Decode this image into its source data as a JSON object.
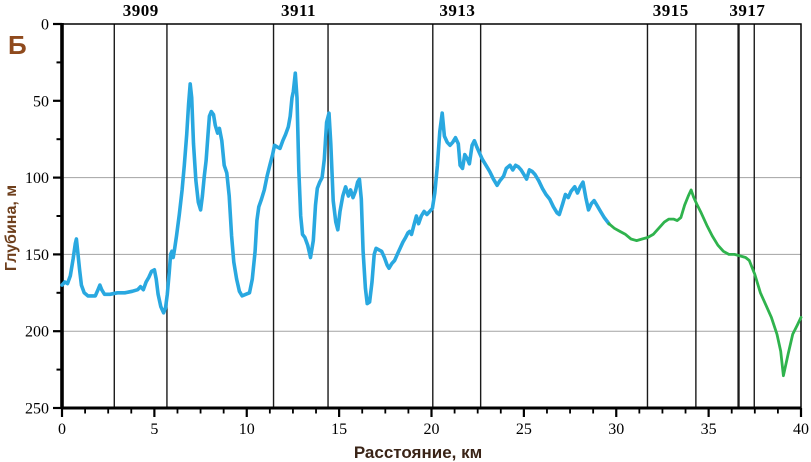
{
  "chart_data": {
    "type": "line",
    "figure_label": "Б",
    "xlabel": "Расстояние, км",
    "ylabel": "Глубина, м",
    "x_range": [
      0,
      40
    ],
    "depth_range": [
      0,
      250
    ],
    "y_axis_inverted": true,
    "x_major_ticks": [
      0,
      5,
      10,
      15,
      20,
      25,
      30,
      35,
      40
    ],
    "x_minor_step": 1.25,
    "y_major_ticks": [
      0,
      50,
      100,
      150,
      200,
      250
    ],
    "y_minor_step": 25,
    "horizontal_gridlines_m": [
      100,
      150,
      200
    ],
    "grid_on": true,
    "legend": "none",
    "station_marker_lines_km": [
      2.83,
      5.68,
      11.45,
      14.4,
      20.07,
      22.66,
      31.69,
      34.31,
      36.62,
      37.47
    ],
    "thick_marker_line_km": 36.62,
    "station_labels": [
      {
        "label": "3909",
        "km": 4.26
      },
      {
        "label": "3911",
        "km": 12.8
      },
      {
        "label": "3913",
        "km": 21.4
      },
      {
        "label": "3915",
        "km": 32.95
      },
      {
        "label": "3917",
        "km": 37.1
      }
    ],
    "series": [
      {
        "name": "depth-profile-blue-segment",
        "color": "#29a8e0",
        "points": [
          [
            0,
            170
          ],
          [
            0.15,
            168
          ],
          [
            0.3,
            169
          ],
          [
            0.45,
            164
          ],
          [
            0.6,
            153
          ],
          [
            0.72,
            143
          ],
          [
            0.78,
            140
          ],
          [
            0.85,
            148
          ],
          [
            0.95,
            160
          ],
          [
            1.05,
            170
          ],
          [
            1.2,
            175
          ],
          [
            1.4,
            177
          ],
          [
            1.6,
            177
          ],
          [
            1.8,
            177
          ],
          [
            1.95,
            173
          ],
          [
            2.05,
            170
          ],
          [
            2.15,
            173
          ],
          [
            2.3,
            176
          ],
          [
            2.6,
            176
          ],
          [
            3.0,
            175
          ],
          [
            3.4,
            175
          ],
          [
            3.8,
            174
          ],
          [
            4.1,
            173
          ],
          [
            4.25,
            171
          ],
          [
            4.4,
            173
          ],
          [
            4.55,
            168
          ],
          [
            4.7,
            165
          ],
          [
            4.85,
            161
          ],
          [
            5.0,
            160
          ],
          [
            5.1,
            166
          ],
          [
            5.2,
            176
          ],
          [
            5.35,
            184
          ],
          [
            5.5,
            188
          ],
          [
            5.6,
            185
          ],
          [
            5.7,
            176
          ],
          [
            5.8,
            162
          ],
          [
            5.88,
            150
          ],
          [
            5.95,
            148
          ],
          [
            6.02,
            152
          ],
          [
            6.1,
            146
          ],
          [
            6.2,
            138
          ],
          [
            6.35,
            124
          ],
          [
            6.5,
            108
          ],
          [
            6.62,
            92
          ],
          [
            6.75,
            72
          ],
          [
            6.85,
            52
          ],
          [
            6.94,
            39
          ],
          [
            7.02,
            48
          ],
          [
            7.12,
            78
          ],
          [
            7.25,
            102
          ],
          [
            7.38,
            116
          ],
          [
            7.5,
            121
          ],
          [
            7.6,
            112
          ],
          [
            7.7,
            99
          ],
          [
            7.8,
            89
          ],
          [
            7.9,
            72
          ],
          [
            7.98,
            60
          ],
          [
            8.08,
            57
          ],
          [
            8.2,
            59
          ],
          [
            8.3,
            66
          ],
          [
            8.42,
            71
          ],
          [
            8.52,
            68
          ],
          [
            8.65,
            76
          ],
          [
            8.78,
            92
          ],
          [
            8.92,
            97
          ],
          [
            9.05,
            112
          ],
          [
            9.18,
            138
          ],
          [
            9.3,
            155
          ],
          [
            9.45,
            166
          ],
          [
            9.6,
            174
          ],
          [
            9.75,
            177
          ],
          [
            9.95,
            176
          ],
          [
            10.15,
            175
          ],
          [
            10.3,
            166
          ],
          [
            10.45,
            148
          ],
          [
            10.55,
            128
          ],
          [
            10.65,
            119
          ],
          [
            10.8,
            114
          ],
          [
            10.95,
            108
          ],
          [
            11.1,
            99
          ],
          [
            11.25,
            92
          ],
          [
            11.4,
            85
          ],
          [
            11.5,
            79
          ],
          [
            11.65,
            80
          ],
          [
            11.8,
            81
          ],
          [
            11.95,
            76
          ],
          [
            12.1,
            72
          ],
          [
            12.25,
            67
          ],
          [
            12.35,
            60
          ],
          [
            12.45,
            48
          ],
          [
            12.52,
            44
          ],
          [
            12.63,
            32
          ],
          [
            12.72,
            48
          ],
          [
            12.82,
            95
          ],
          [
            12.92,
            125
          ],
          [
            13.02,
            137
          ],
          [
            13.15,
            139
          ],
          [
            13.3,
            144
          ],
          [
            13.45,
            152
          ],
          [
            13.6,
            141
          ],
          [
            13.72,
            118
          ],
          [
            13.82,
            107
          ],
          [
            13.95,
            103
          ],
          [
            14.08,
            100
          ],
          [
            14.2,
            88
          ],
          [
            14.32,
            64
          ],
          [
            14.45,
            58
          ],
          [
            14.55,
            78
          ],
          [
            14.68,
            115
          ],
          [
            14.82,
            129
          ],
          [
            14.93,
            134
          ],
          [
            15.05,
            122
          ],
          [
            15.2,
            112
          ],
          [
            15.35,
            106
          ],
          [
            15.5,
            112
          ],
          [
            15.62,
            108
          ],
          [
            15.75,
            113
          ],
          [
            15.88,
            109
          ],
          [
            16.0,
            103
          ],
          [
            16.1,
            101
          ],
          [
            16.2,
            114
          ],
          [
            16.3,
            148
          ],
          [
            16.42,
            172
          ],
          [
            16.52,
            182
          ],
          [
            16.65,
            181
          ],
          [
            16.78,
            168
          ],
          [
            16.9,
            150
          ],
          [
            17.0,
            146
          ],
          [
            17.15,
            147
          ],
          [
            17.3,
            148
          ],
          [
            17.45,
            152
          ],
          [
            17.6,
            157
          ],
          [
            17.7,
            159
          ],
          [
            17.85,
            156
          ],
          [
            18.0,
            154
          ],
          [
            18.15,
            150
          ],
          [
            18.3,
            146
          ],
          [
            18.45,
            142
          ],
          [
            18.6,
            139
          ],
          [
            18.72,
            136
          ],
          [
            18.82,
            135
          ],
          [
            18.92,
            137
          ],
          [
            19.05,
            131
          ],
          [
            19.18,
            125
          ],
          [
            19.3,
            130
          ],
          [
            19.45,
            125
          ],
          [
            19.6,
            122
          ],
          [
            19.75,
            124
          ],
          [
            19.9,
            122
          ],
          [
            20.05,
            120
          ],
          [
            20.18,
            110
          ],
          [
            20.32,
            92
          ],
          [
            20.45,
            70
          ],
          [
            20.58,
            58
          ],
          [
            20.7,
            73
          ],
          [
            20.85,
            77
          ],
          [
            21.0,
            79
          ],
          [
            21.15,
            77
          ],
          [
            21.3,
            74
          ],
          [
            21.45,
            78
          ],
          [
            21.55,
            92
          ],
          [
            21.68,
            94
          ],
          [
            21.8,
            85
          ],
          [
            21.95,
            88
          ],
          [
            22.05,
            91
          ],
          [
            22.2,
            79
          ],
          [
            22.32,
            76
          ],
          [
            22.45,
            80
          ],
          [
            22.6,
            84
          ],
          [
            22.75,
            88
          ],
          [
            22.95,
            92
          ],
          [
            23.15,
            96
          ],
          [
            23.35,
            101
          ],
          [
            23.55,
            105
          ],
          [
            23.7,
            102
          ],
          [
            23.9,
            99
          ],
          [
            24.05,
            94
          ],
          [
            24.25,
            92
          ],
          [
            24.4,
            95
          ],
          [
            24.55,
            92
          ],
          [
            24.7,
            93
          ],
          [
            24.85,
            95
          ],
          [
            25.0,
            98
          ],
          [
            25.15,
            101
          ],
          [
            25.3,
            95
          ],
          [
            25.45,
            96
          ],
          [
            25.6,
            98
          ],
          [
            25.8,
            102
          ],
          [
            26.0,
            107
          ],
          [
            26.2,
            111
          ],
          [
            26.4,
            114
          ],
          [
            26.6,
            119
          ],
          [
            26.8,
            123
          ],
          [
            26.92,
            124
          ],
          [
            27.1,
            117
          ],
          [
            27.25,
            111
          ],
          [
            27.4,
            113
          ],
          [
            27.55,
            109
          ],
          [
            27.75,
            106
          ],
          [
            27.9,
            110
          ],
          [
            28.05,
            106
          ],
          [
            28.2,
            103
          ],
          [
            28.35,
            113
          ],
          [
            28.5,
            121
          ],
          [
            28.65,
            117
          ],
          [
            28.8,
            115
          ],
          [
            28.95,
            118
          ],
          [
            29.15,
            122
          ],
          [
            29.35,
            126
          ],
          [
            29.6,
            130
          ]
        ]
      },
      {
        "name": "depth-profile-green-segment",
        "color": "#2fb34d",
        "points": [
          [
            29.6,
            130
          ],
          [
            29.9,
            133
          ],
          [
            30.2,
            135
          ],
          [
            30.5,
            137
          ],
          [
            30.8,
            140
          ],
          [
            31.1,
            141
          ],
          [
            31.4,
            140
          ],
          [
            31.7,
            139
          ],
          [
            32.0,
            137
          ],
          [
            32.3,
            133
          ],
          [
            32.6,
            129
          ],
          [
            32.85,
            127
          ],
          [
            33.1,
            127
          ],
          [
            33.3,
            128
          ],
          [
            33.5,
            126
          ],
          [
            33.7,
            118
          ],
          [
            33.9,
            112
          ],
          [
            34.05,
            108
          ],
          [
            34.2,
            113
          ],
          [
            34.35,
            117
          ],
          [
            34.6,
            123
          ],
          [
            34.9,
            131
          ],
          [
            35.2,
            138
          ],
          [
            35.5,
            144
          ],
          [
            35.8,
            148
          ],
          [
            36.1,
            150
          ],
          [
            36.4,
            150
          ],
          [
            36.7,
            151
          ],
          [
            37.0,
            152
          ],
          [
            37.2,
            154
          ],
          [
            37.5,
            163
          ],
          [
            37.8,
            175
          ],
          [
            38.1,
            183
          ],
          [
            38.4,
            191
          ],
          [
            38.7,
            202
          ],
          [
            38.9,
            213
          ],
          [
            39.05,
            229
          ],
          [
            39.3,
            215
          ],
          [
            39.55,
            202
          ],
          [
            39.8,
            196
          ],
          [
            40.0,
            191
          ]
        ]
      }
    ]
  },
  "colors": {
    "figure_label": "#8f4a1d",
    "ylabel_text": "#6e3f1c",
    "xlabel_text": "#3a2417",
    "tick_labels": "#000000",
    "station_labels": "#000000",
    "gridline": "#a3a3a3",
    "station_line": "#1a1a1a",
    "axis": "#000000",
    "background": "#ffffff",
    "blue_line": "#29a8e0",
    "green_line": "#2fb34d"
  }
}
